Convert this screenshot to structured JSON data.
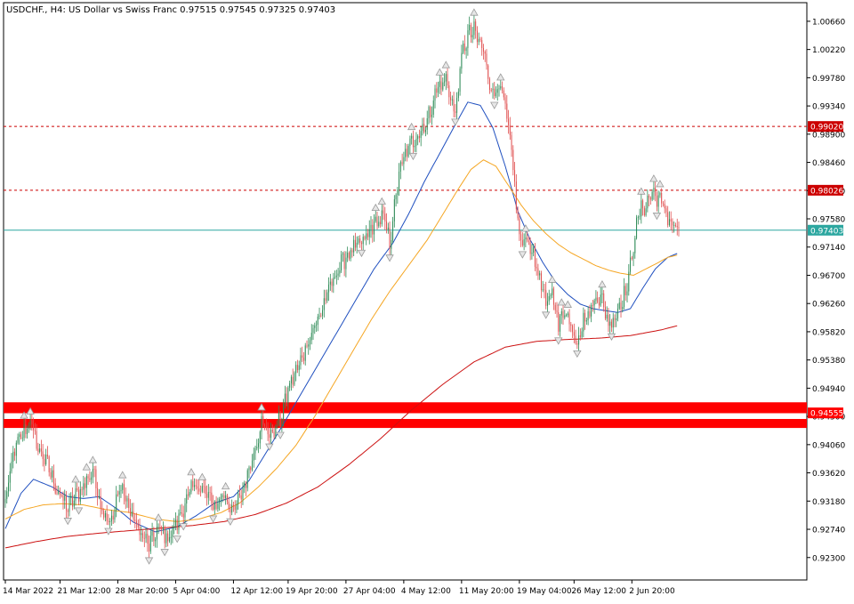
{
  "header": {
    "symbol": "USDCHF.",
    "timeframe": "H4",
    "description": "US Dollar vs Swiss Franc",
    "ohlc": [
      "0.97515",
      "0.97545",
      "0.97325",
      "0.97403"
    ]
  },
  "colors": {
    "bull": "#2e8b57",
    "bear": "#e05050",
    "ma_fast": "#1f4fbf",
    "ma_mid": "#f5a623",
    "ma_slow": "#cc1111",
    "level": "#cc0000",
    "current": "#2ca7a0",
    "zone": "#ff0000",
    "fractal": "#9a9a9a"
  },
  "chart_data": {
    "type": "candlestick",
    "symbol": "USDCHF.",
    "timeframe": "H4",
    "ylim": [
      0.9195,
      1.0095
    ],
    "y_ticks": [
      "1.00660",
      "1.00220",
      "0.99780",
      "0.99340",
      "0.98900",
      "0.98460",
      "0.98020",
      "0.97580",
      "0.97140",
      "0.96700",
      "0.96260",
      "0.95820",
      "0.95380",
      "0.94940",
      "0.94500",
      "0.94060",
      "0.93620",
      "0.93180",
      "0.92740",
      "0.92300"
    ],
    "x_ticks": [
      {
        "label": "14 Mar 2022",
        "index": 0
      },
      {
        "label": "21 Mar 12:00",
        "index": 35
      },
      {
        "label": "28 Mar 20:00",
        "index": 72
      },
      {
        "label": "5 Apr 04:00",
        "index": 109
      },
      {
        "label": "12 Apr 12:00",
        "index": 146
      },
      {
        "label": "19 Apr 20:00",
        "index": 181
      },
      {
        "label": "27 Apr 04:00",
        "index": 218
      },
      {
        "label": "4 May 12:00",
        "index": 255
      },
      {
        "label": "11 May 20:00",
        "index": 292
      },
      {
        "label": "19 May 04:00",
        "index": 329
      },
      {
        "label": "26 May 12:00",
        "index": 364
      },
      {
        "label": "2 Jun 20:00",
        "index": 401
      }
    ],
    "candle_count": 432,
    "anchors": [
      [
        0,
        0.9318
      ],
      [
        6,
        0.94
      ],
      [
        12,
        0.9425
      ],
      [
        16,
        0.9445
      ],
      [
        20,
        0.9405
      ],
      [
        26,
        0.938
      ],
      [
        34,
        0.933
      ],
      [
        40,
        0.9308
      ],
      [
        48,
        0.9335
      ],
      [
        56,
        0.9365
      ],
      [
        62,
        0.9305
      ],
      [
        68,
        0.9285
      ],
      [
        74,
        0.9345
      ],
      [
        80,
        0.93
      ],
      [
        86,
        0.927
      ],
      [
        92,
        0.9248
      ],
      [
        98,
        0.9275
      ],
      [
        104,
        0.926
      ],
      [
        110,
        0.9285
      ],
      [
        116,
        0.932
      ],
      [
        122,
        0.9345
      ],
      [
        128,
        0.933
      ],
      [
        134,
        0.931
      ],
      [
        140,
        0.933
      ],
      [
        146,
        0.93
      ],
      [
        152,
        0.9335
      ],
      [
        158,
        0.9385
      ],
      [
        164,
        0.944
      ],
      [
        170,
        0.942
      ],
      [
        176,
        0.9445
      ],
      [
        182,
        0.95
      ],
      [
        188,
        0.953
      ],
      [
        194,
        0.957
      ],
      [
        200,
        0.96
      ],
      [
        206,
        0.964
      ],
      [
        212,
        0.9675
      ],
      [
        218,
        0.97
      ],
      [
        224,
        0.9712
      ],
      [
        230,
        0.9725
      ],
      [
        236,
        0.975
      ],
      [
        242,
        0.976
      ],
      [
        246,
        0.972
      ],
      [
        252,
        0.983
      ],
      [
        258,
        0.987
      ],
      [
        264,
        0.989
      ],
      [
        270,
        0.991
      ],
      [
        276,
        0.996
      ],
      [
        282,
        0.9975
      ],
      [
        288,
        0.992
      ],
      [
        292,
        1.001
      ],
      [
        296,
        1.0045
      ],
      [
        300,
        1.005
      ],
      [
        306,
        1.002
      ],
      [
        312,
        0.995
      ],
      [
        316,
        0.997
      ],
      [
        320,
        0.993
      ],
      [
        324,
        0.986
      ],
      [
        327,
        0.978
      ],
      [
        330,
        0.9715
      ],
      [
        334,
        0.973
      ],
      [
        338,
        0.97
      ],
      [
        342,
        0.9665
      ],
      [
        346,
        0.962
      ],
      [
        350,
        0.965
      ],
      [
        354,
        0.959
      ],
      [
        358,
        0.962
      ],
      [
        362,
        0.959
      ],
      [
        366,
        0.957
      ],
      [
        370,
        0.96
      ],
      [
        374,
        0.961
      ],
      [
        378,
        0.964
      ],
      [
        382,
        0.963
      ],
      [
        386,
        0.9595
      ],
      [
        390,
        0.9605
      ],
      [
        394,
        0.963
      ],
      [
        398,
        0.965
      ],
      [
        402,
        0.972
      ],
      [
        406,
        0.977
      ],
      [
        410,
        0.978
      ],
      [
        414,
        0.98
      ],
      [
        418,
        0.979
      ],
      [
        422,
        0.9772
      ],
      [
        426,
        0.9752
      ],
      [
        431,
        0.974
      ]
    ],
    "moving_averages": [
      {
        "key": "ma_fast",
        "period": 20,
        "points": [
          [
            0,
            0.9275
          ],
          [
            10,
            0.933
          ],
          [
            18,
            0.9352
          ],
          [
            30,
            0.934
          ],
          [
            40,
            0.9325
          ],
          [
            50,
            0.9322
          ],
          [
            60,
            0.9325
          ],
          [
            72,
            0.9305
          ],
          [
            82,
            0.9285
          ],
          [
            96,
            0.927
          ],
          [
            110,
            0.9278
          ],
          [
            122,
            0.9295
          ],
          [
            134,
            0.9315
          ],
          [
            146,
            0.9325
          ],
          [
            156,
            0.935
          ],
          [
            166,
            0.939
          ],
          [
            176,
            0.943
          ],
          [
            188,
            0.948
          ],
          [
            200,
            0.953
          ],
          [
            212,
            0.958
          ],
          [
            224,
            0.963
          ],
          [
            236,
            0.968
          ],
          [
            248,
            0.972
          ],
          [
            258,
            0.9765
          ],
          [
            268,
            0.9815
          ],
          [
            278,
            0.986
          ],
          [
            288,
            0.9905
          ],
          [
            296,
            0.994
          ],
          [
            304,
            0.9935
          ],
          [
            312,
            0.99
          ],
          [
            320,
            0.984
          ],
          [
            328,
            0.977
          ],
          [
            336,
            0.9725
          ],
          [
            344,
            0.969
          ],
          [
            352,
            0.966
          ],
          [
            360,
            0.964
          ],
          [
            368,
            0.9625
          ],
          [
            376,
            0.9618
          ],
          [
            384,
            0.9615
          ],
          [
            392,
            0.9612
          ],
          [
            400,
            0.9618
          ],
          [
            408,
            0.965
          ],
          [
            416,
            0.968
          ],
          [
            424,
            0.9698
          ],
          [
            431,
            0.9705
          ]
        ]
      },
      {
        "key": "ma_mid",
        "period": 50,
        "points": [
          [
            0,
            0.929
          ],
          [
            12,
            0.9305
          ],
          [
            24,
            0.9312
          ],
          [
            36,
            0.9314
          ],
          [
            50,
            0.9312
          ],
          [
            64,
            0.9305
          ],
          [
            80,
            0.93
          ],
          [
            96,
            0.929
          ],
          [
            110,
            0.9286
          ],
          [
            124,
            0.929
          ],
          [
            138,
            0.93
          ],
          [
            150,
            0.9315
          ],
          [
            162,
            0.934
          ],
          [
            174,
            0.937
          ],
          [
            186,
            0.9405
          ],
          [
            198,
            0.945
          ],
          [
            210,
            0.95
          ],
          [
            222,
            0.955
          ],
          [
            234,
            0.96
          ],
          [
            246,
            0.9645
          ],
          [
            258,
            0.9685
          ],
          [
            270,
            0.9725
          ],
          [
            280,
            0.9765
          ],
          [
            290,
            0.9805
          ],
          [
            298,
            0.9835
          ],
          [
            306,
            0.985
          ],
          [
            314,
            0.984
          ],
          [
            322,
            0.981
          ],
          [
            330,
            0.978
          ],
          [
            338,
            0.9755
          ],
          [
            346,
            0.9735
          ],
          [
            354,
            0.9718
          ],
          [
            362,
            0.9705
          ],
          [
            370,
            0.9695
          ],
          [
            378,
            0.9685
          ],
          [
            386,
            0.9678
          ],
          [
            394,
            0.9673
          ],
          [
            402,
            0.967
          ],
          [
            410,
            0.968
          ],
          [
            418,
            0.969
          ],
          [
            424,
            0.9698
          ],
          [
            431,
            0.9702
          ]
        ]
      },
      {
        "key": "ma_slow",
        "period": 200,
        "points": [
          [
            0,
            0.9245
          ],
          [
            20,
            0.9255
          ],
          [
            40,
            0.9263
          ],
          [
            60,
            0.9268
          ],
          [
            80,
            0.9272
          ],
          [
            100,
            0.9276
          ],
          [
            120,
            0.928
          ],
          [
            140,
            0.9286
          ],
          [
            160,
            0.9297
          ],
          [
            180,
            0.9315
          ],
          [
            200,
            0.934
          ],
          [
            220,
            0.9375
          ],
          [
            240,
            0.9415
          ],
          [
            260,
            0.946
          ],
          [
            280,
            0.95
          ],
          [
            300,
            0.9535
          ],
          [
            320,
            0.9558
          ],
          [
            340,
            0.9567
          ],
          [
            360,
            0.957
          ],
          [
            380,
            0.9572
          ],
          [
            400,
            0.9576
          ],
          [
            420,
            0.9585
          ],
          [
            431,
            0.9592
          ]
        ]
      }
    ],
    "levels": [
      {
        "key": "level",
        "value": 0.9902,
        "label": "0.99020",
        "style": "dashed"
      },
      {
        "key": "level",
        "value": 0.98026,
        "label": "0.98026",
        "style": "dashed"
      },
      {
        "key": "current",
        "value": 0.97403,
        "label": "0.97403",
        "style": "solid"
      }
    ],
    "zones": [
      {
        "key": "zone",
        "from": 0.9455,
        "to": 0.9472
      },
      {
        "key": "zone",
        "from": 0.9432,
        "to": 0.9446,
        "label": "0.94555"
      }
    ]
  }
}
